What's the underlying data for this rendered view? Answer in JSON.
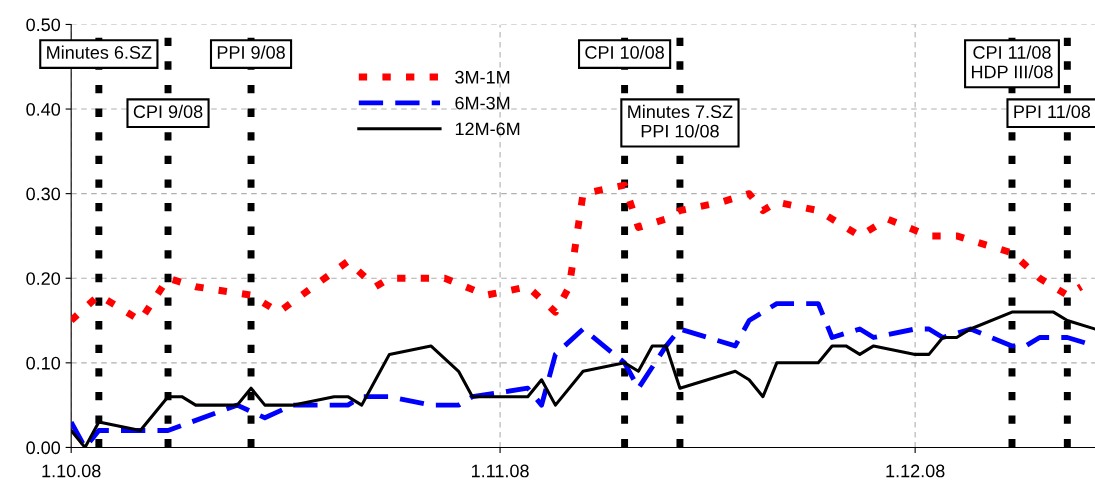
{
  "chart_data": {
    "type": "line",
    "xlim": [
      "2008-10-01",
      "2008-12-14"
    ],
    "xticks": [
      {
        "value": "2008-10-01",
        "label": "1.10.08"
      },
      {
        "value": "2008-11-01",
        "label": "1.11.08"
      },
      {
        "value": "2008-12-01",
        "label": "1.12.08"
      }
    ],
    "ylim": [
      0,
      0.5
    ],
    "yticks": [
      {
        "value": 0,
        "label": "0.00"
      },
      {
        "value": 0.1,
        "label": "0.10"
      },
      {
        "value": 0.2,
        "label": "0.20"
      },
      {
        "value": 0.3,
        "label": "0.30"
      },
      {
        "value": 0.4,
        "label": "0.40"
      },
      {
        "value": 0.5,
        "label": "0.50"
      }
    ],
    "grid": true,
    "legend": "top",
    "marker": "none",
    "series": [
      {
        "name": "3M-1M",
        "color": "#ff0000",
        "line_style": "dotted",
        "x": [
          "2008-10-01",
          "2008-10-03",
          "2008-10-06",
          "2008-10-08",
          "2008-10-10",
          "2008-10-14",
          "2008-10-16",
          "2008-10-21",
          "2008-10-23",
          "2008-10-24",
          "2008-10-28",
          "2008-10-31",
          "2008-11-03",
          "2008-11-05",
          "2008-11-06",
          "2008-11-07",
          "2008-11-10",
          "2008-11-11",
          "2008-11-13",
          "2008-11-14",
          "2008-11-17",
          "2008-11-19",
          "2008-11-20",
          "2008-11-21",
          "2008-11-24",
          "2008-11-27",
          "2008-11-29",
          "2008-12-02",
          "2008-12-04",
          "2008-12-08",
          "2008-12-10",
          "2008-12-12",
          "2008-12-13"
        ],
        "values": [
          0.15,
          0.18,
          0.15,
          0.2,
          0.19,
          0.18,
          0.16,
          0.22,
          0.19,
          0.2,
          0.2,
          0.18,
          0.19,
          0.16,
          0.19,
          0.3,
          0.31,
          0.26,
          0.27,
          0.28,
          0.29,
          0.3,
          0.28,
          0.29,
          0.28,
          0.25,
          0.27,
          0.25,
          0.25,
          0.23,
          0.2,
          0.18,
          0.19
        ]
      },
      {
        "name": "6M-3M",
        "color": "#0000ff",
        "line_style": "dashed",
        "x": [
          "2008-10-01",
          "2008-10-02",
          "2008-10-03",
          "2008-10-06",
          "2008-10-08",
          "2008-10-13",
          "2008-10-15",
          "2008-10-17",
          "2008-10-20",
          "2008-10-21",
          "2008-10-22",
          "2008-10-24",
          "2008-10-27",
          "2008-10-29",
          "2008-10-30",
          "2008-11-03",
          "2008-11-04",
          "2008-11-05",
          "2008-11-07",
          "2008-11-10",
          "2008-11-11",
          "2008-11-13",
          "2008-11-14",
          "2008-11-18",
          "2008-11-19",
          "2008-11-21",
          "2008-11-24",
          "2008-11-25",
          "2008-11-27",
          "2008-11-28",
          "2008-12-01",
          "2008-12-02",
          "2008-12-03",
          "2008-12-05",
          "2008-12-08",
          "2008-12-09",
          "2008-12-10",
          "2008-12-12",
          "2008-12-14"
        ],
        "values": [
          0.03,
          0.0,
          0.02,
          0.02,
          0.02,
          0.05,
          0.035,
          0.05,
          0.05,
          0.05,
          0.06,
          0.06,
          0.05,
          0.05,
          0.06,
          0.07,
          0.05,
          0.11,
          0.14,
          0.1,
          0.07,
          0.12,
          0.14,
          0.12,
          0.15,
          0.17,
          0.17,
          0.13,
          0.14,
          0.13,
          0.14,
          0.14,
          0.13,
          0.14,
          0.12,
          0.12,
          0.13,
          0.13,
          0.12
        ]
      },
      {
        "name": "12M-6M",
        "color": "#000000",
        "line_style": "solid",
        "x": [
          "2008-10-01",
          "2008-10-02",
          "2008-10-03",
          "2008-10-06",
          "2008-10-08",
          "2008-10-09",
          "2008-10-10",
          "2008-10-13",
          "2008-10-14",
          "2008-10-15",
          "2008-10-17",
          "2008-10-20",
          "2008-10-21",
          "2008-10-22",
          "2008-10-23",
          "2008-10-24",
          "2008-10-27",
          "2008-10-29",
          "2008-10-30",
          "2008-11-03",
          "2008-11-04",
          "2008-11-05",
          "2008-11-07",
          "2008-11-10",
          "2008-11-11",
          "2008-11-12",
          "2008-11-13",
          "2008-11-14",
          "2008-11-18",
          "2008-11-19",
          "2008-11-20",
          "2008-11-21",
          "2008-11-24",
          "2008-11-25",
          "2008-11-26",
          "2008-11-27",
          "2008-11-28",
          "2008-12-01",
          "2008-12-02",
          "2008-12-03",
          "2008-12-04",
          "2008-12-05",
          "2008-12-08",
          "2008-12-11",
          "2008-12-12",
          "2008-12-14"
        ],
        "values": [
          0.02,
          0.0,
          0.03,
          0.02,
          0.06,
          0.06,
          0.05,
          0.05,
          0.07,
          0.05,
          0.05,
          0.06,
          0.06,
          0.05,
          0.08,
          0.11,
          0.12,
          0.09,
          0.06,
          0.06,
          0.08,
          0.05,
          0.09,
          0.1,
          0.09,
          0.12,
          0.12,
          0.07,
          0.09,
          0.08,
          0.06,
          0.1,
          0.1,
          0.12,
          0.12,
          0.11,
          0.12,
          0.11,
          0.11,
          0.13,
          0.13,
          0.14,
          0.16,
          0.16,
          0.15,
          0.14
        ]
      }
    ],
    "ref_lines": [
      {
        "axis": "x",
        "value": "2008-10-03",
        "label": "Minutes 6.SZ",
        "color": "#000000",
        "line_style": "dotted"
      },
      {
        "axis": "x",
        "value": "2008-10-08",
        "label": "CPI 9/08",
        "color": "#000000",
        "line_style": "dotted"
      },
      {
        "axis": "x",
        "value": "2008-10-14",
        "label": "PPI 9/08",
        "color": "#000000",
        "line_style": "dotted"
      },
      {
        "axis": "x",
        "value": "2008-11-10",
        "label": "CPI 10/08",
        "color": "#000000",
        "line_style": "dotted"
      },
      {
        "axis": "x",
        "value": "2008-11-14",
        "label": "Minutes 7.SZ\nPPI 10/08",
        "color": "#000000",
        "line_style": "dotted"
      },
      {
        "axis": "x",
        "value": "2008-12-08",
        "label": "CPI 11/08\nHDP III/08",
        "color": "#000000",
        "line_style": "dotted"
      },
      {
        "axis": "x",
        "value": "2008-12-12",
        "label": "PPI 11/08",
        "color": "#000000",
        "line_style": "dotted"
      }
    ]
  }
}
